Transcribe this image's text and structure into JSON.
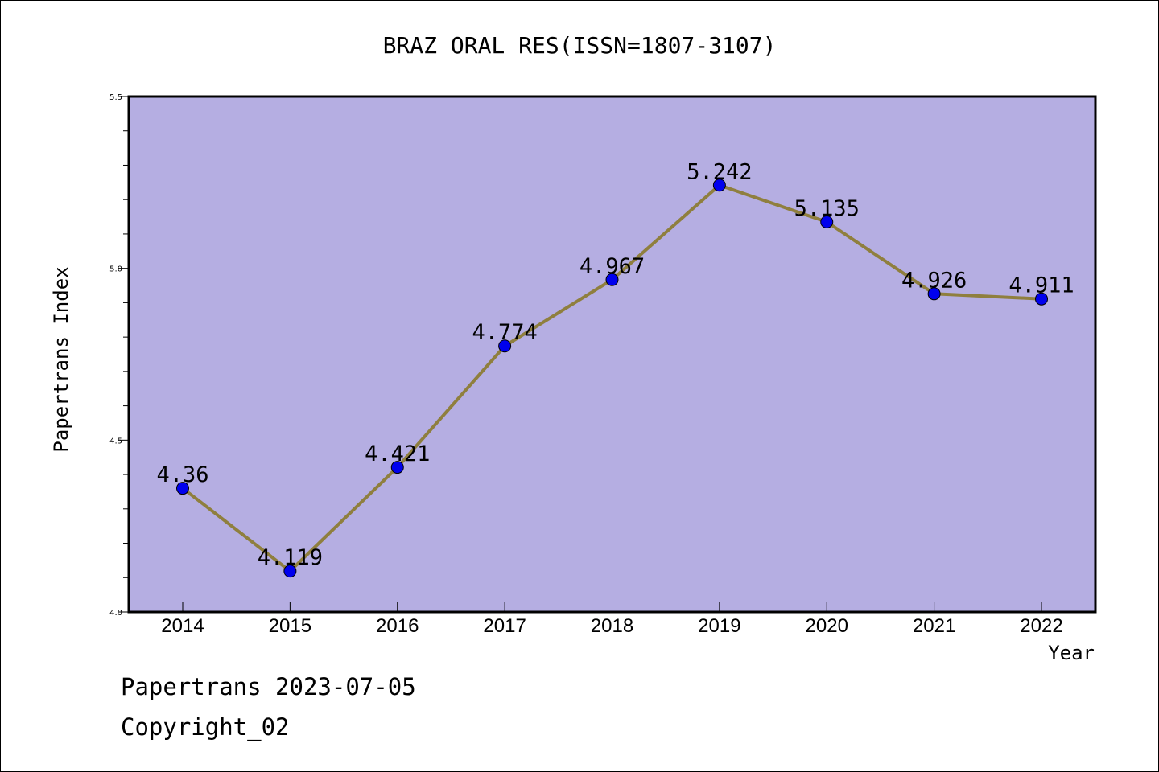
{
  "chart_data": {
    "type": "line",
    "title": "BRAZ ORAL RES(ISSN=1807-3107)",
    "xlabel": "Year",
    "ylabel": "Papertrans Index",
    "categories": [
      "2014",
      "2015",
      "2016",
      "2017",
      "2018",
      "2019",
      "2020",
      "2021",
      "2022"
    ],
    "series": [
      {
        "values": [
          4.36,
          4.119,
          4.421,
          4.774,
          4.967,
          5.242,
          5.135,
          4.926,
          4.911
        ],
        "labels": [
          "4.36",
          "4.119",
          "4.421",
          "4.774",
          "4.967",
          "5.242",
          "5.135",
          "4.926",
          "4.911"
        ]
      }
    ],
    "ylim": [
      4.0,
      5.5
    ],
    "yticks": [
      "4.0",
      "4.5",
      "5.0",
      "5.5"
    ],
    "grid": false,
    "colors": {
      "plot_background": "#b5aee2",
      "line": "#8f7f3e",
      "marker": "#0000ee"
    }
  },
  "footer": {
    "line1": "Papertrans 2023-07-05",
    "line2": "Copyright_02"
  }
}
